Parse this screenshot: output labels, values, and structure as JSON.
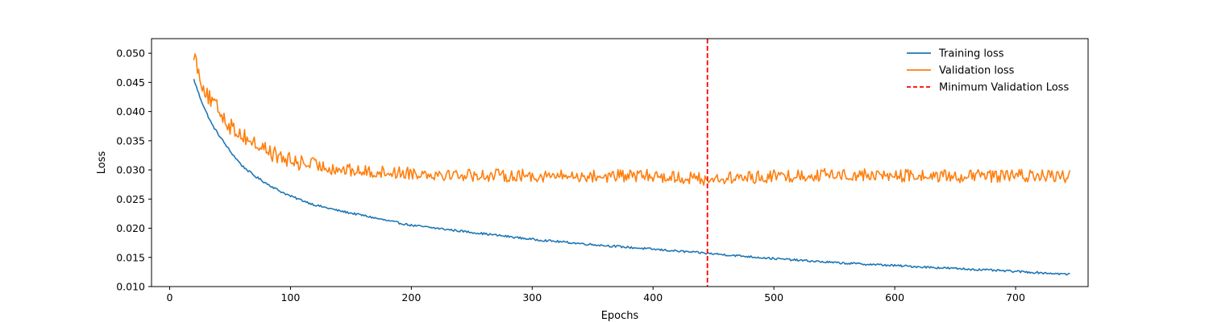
{
  "chart_data": {
    "type": "line",
    "title": "",
    "xlabel": "Epochs",
    "ylabel": "Loss",
    "xlim": [
      -15,
      760
    ],
    "ylim": [
      0.01,
      0.0525
    ],
    "xticks": [
      0,
      100,
      200,
      300,
      400,
      500,
      600,
      700
    ],
    "xtick_labels": [
      "0",
      "100",
      "200",
      "300",
      "400",
      "500",
      "600",
      "700"
    ],
    "yticks": [
      0.01,
      0.015,
      0.02,
      0.025,
      0.03,
      0.035,
      0.04,
      0.045,
      0.05
    ],
    "ytick_labels": [
      "0.010",
      "0.015",
      "0.020",
      "0.025",
      "0.030",
      "0.035",
      "0.040",
      "0.045",
      "0.050"
    ],
    "grid": false,
    "legend_position": "top-right",
    "series": [
      {
        "name": "Training loss",
        "color": "#1f77b4",
        "x": [
          20,
          25,
          30,
          35,
          40,
          50,
          60,
          70,
          80,
          90,
          100,
          120,
          140,
          160,
          180,
          200,
          250,
          300,
          350,
          400,
          445,
          500,
          550,
          600,
          650,
          700,
          745
        ],
        "y": [
          0.0455,
          0.0425,
          0.04,
          0.0378,
          0.0362,
          0.0332,
          0.0307,
          0.029,
          0.0277,
          0.0265,
          0.0255,
          0.024,
          0.023,
          0.0222,
          0.0213,
          0.0205,
          0.0193,
          0.0181,
          0.0172,
          0.0164,
          0.0157,
          0.0148,
          0.0141,
          0.0136,
          0.0131,
          0.0126,
          0.0121
        ]
      },
      {
        "name": "Validation loss",
        "color": "#ff7f0e",
        "x": [
          20,
          25,
          30,
          35,
          40,
          50,
          60,
          70,
          80,
          90,
          100,
          110,
          120,
          140,
          160,
          200,
          250,
          300,
          350,
          400,
          445,
          500,
          550,
          600,
          650,
          700,
          745
        ],
        "y": [
          0.0502,
          0.046,
          0.0432,
          0.0415,
          0.0405,
          0.0375,
          0.036,
          0.0345,
          0.0335,
          0.0322,
          0.0315,
          0.0312,
          0.0308,
          0.0301,
          0.0297,
          0.0295,
          0.0291,
          0.029,
          0.0289,
          0.029,
          0.0284,
          0.0289,
          0.0292,
          0.029,
          0.0289,
          0.029,
          0.0289
        ]
      }
    ],
    "vertical_line": {
      "name": "Minimum Validation Loss",
      "x": 445,
      "color": "#ff0000",
      "style": "dashed"
    }
  }
}
